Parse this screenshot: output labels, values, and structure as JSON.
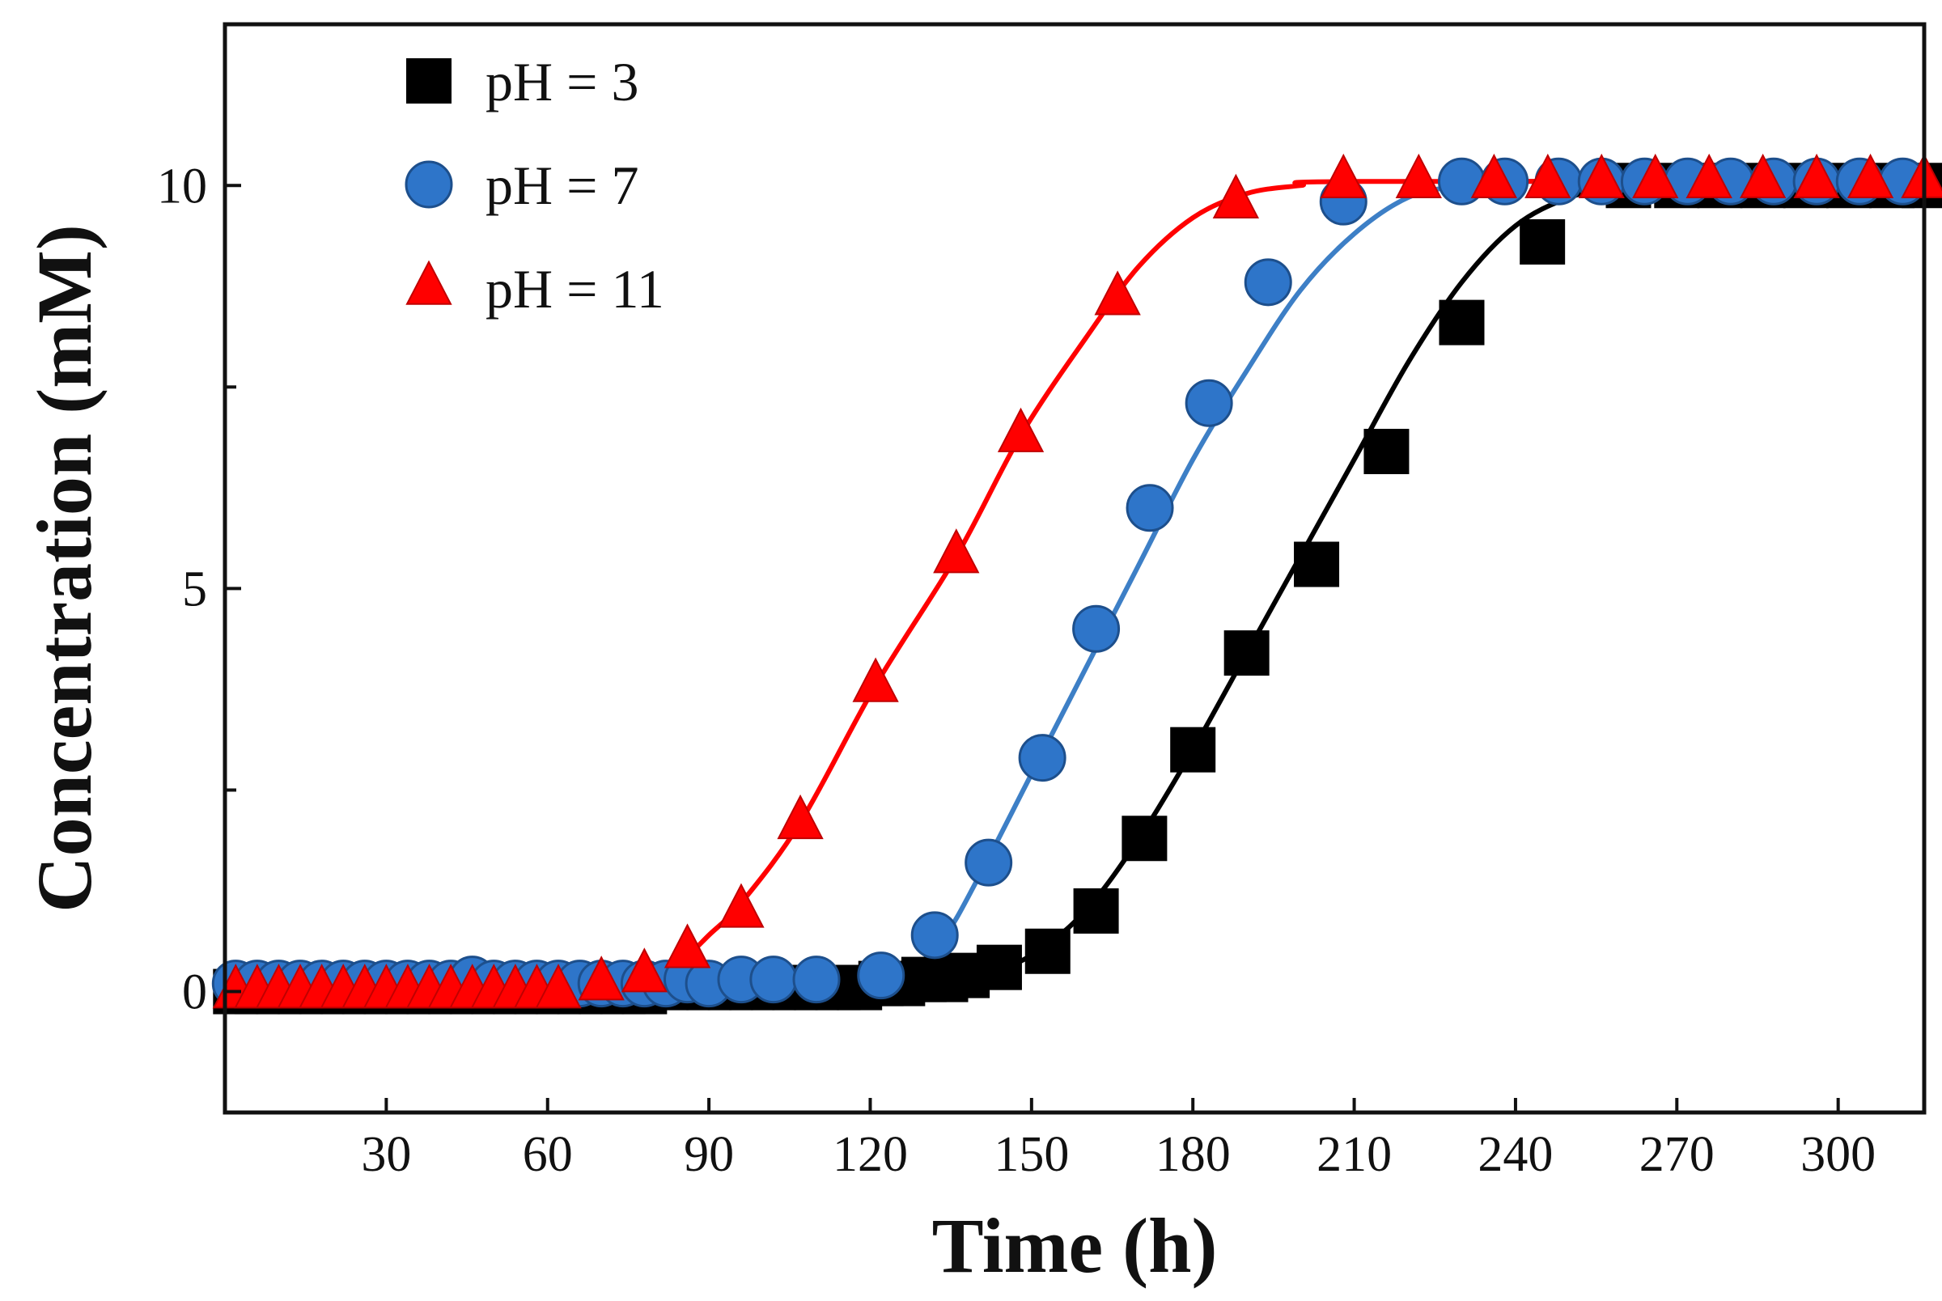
{
  "chart_data": {
    "type": "scatter",
    "title": "",
    "xlabel": "Time (h)",
    "ylabel": "Concentration (mM)",
    "xlim": [
      0,
      316
    ],
    "ylim": [
      -1.5,
      12
    ],
    "xticks": [
      30,
      60,
      90,
      120,
      150,
      180,
      210,
      240,
      270,
      300
    ],
    "yticks_labeled": [
      0,
      5,
      10
    ],
    "yticks_minor": [
      2.5,
      7.5
    ],
    "legend_position": "top-left",
    "grid": false,
    "series": [
      {
        "name": "pH = 3",
        "marker": "square",
        "color": "#000000",
        "x": [
          2,
          6,
          10,
          14,
          18,
          22,
          26,
          30,
          34,
          38,
          42,
          46,
          50,
          54,
          58,
          62,
          66,
          70,
          74,
          78,
          82,
          86,
          90,
          94,
          98,
          102,
          106,
          110,
          114,
          118,
          122,
          126,
          130,
          134,
          138,
          144,
          153,
          162,
          171,
          180,
          190,
          203,
          216,
          230,
          245,
          261,
          270,
          278,
          286,
          294,
          302,
          310,
          316
        ],
        "y": [
          0,
          0,
          0,
          0,
          0,
          0,
          0,
          0,
          0,
          0,
          0,
          0,
          0,
          0,
          0,
          0,
          0,
          0,
          0,
          0,
          0.05,
          0.05,
          0.05,
          0.05,
          0.05,
          0.05,
          0.05,
          0.05,
          0.05,
          0.05,
          0.1,
          0.1,
          0.15,
          0.15,
          0.2,
          0.3,
          0.5,
          1.0,
          1.9,
          3.0,
          4.2,
          5.3,
          6.7,
          8.3,
          9.3,
          10,
          10,
          10,
          10,
          10,
          10,
          10,
          10
        ],
        "fit_x": [
          0,
          120,
          130,
          140,
          150,
          160,
          170,
          180,
          190,
          200,
          210,
          220,
          230,
          240,
          250,
          260,
          270,
          316
        ],
        "fit_y": [
          0,
          0.05,
          0.1,
          0.2,
          0.45,
          1.0,
          1.9,
          3.0,
          4.2,
          5.4,
          6.6,
          7.8,
          8.8,
          9.5,
          9.85,
          10,
          10,
          10
        ]
      },
      {
        "name": "pH = 7",
        "marker": "circle",
        "color": "#2e75c9",
        "x": [
          2,
          6,
          10,
          14,
          18,
          22,
          26,
          30,
          34,
          38,
          42,
          46,
          50,
          54,
          58,
          62,
          66,
          70,
          74,
          78,
          82,
          86,
          90,
          96,
          102,
          110,
          122,
          132,
          142,
          152,
          162,
          172,
          183,
          194,
          208,
          230,
          238,
          248,
          256,
          264,
          272,
          280,
          288,
          296,
          304,
          312
        ],
        "y": [
          0.1,
          0.1,
          0.1,
          0.1,
          0.1,
          0.1,
          0.1,
          0.1,
          0.1,
          0.1,
          0.1,
          0.15,
          0.1,
          0.1,
          0.1,
          0.1,
          0.1,
          0.1,
          0.1,
          0.1,
          0.1,
          0.15,
          0.1,
          0.15,
          0.15,
          0.15,
          0.2,
          0.7,
          1.6,
          2.9,
          4.5,
          6.0,
          7.3,
          8.8,
          9.8,
          10.05,
          10.05,
          10.05,
          10.05,
          10.05,
          10.05,
          10.05,
          10.05,
          10.05,
          10.05,
          10.05
        ],
        "fit_x": [
          0,
          110,
          120,
          128,
          134,
          140,
          150,
          160,
          170,
          180,
          190,
          200,
          210,
          220,
          230,
          240,
          316
        ],
        "fit_y": [
          0.1,
          0.15,
          0.2,
          0.3,
          0.7,
          1.4,
          2.7,
          4.0,
          5.3,
          6.6,
          7.7,
          8.7,
          9.4,
          9.85,
          10.0,
          10.05,
          10.05
        ],
        "fit_color": "#3d7fc6"
      },
      {
        "name": "pH = 11",
        "marker": "triangle",
        "color": "#ff0000",
        "x": [
          2,
          6,
          10,
          14,
          18,
          22,
          26,
          30,
          34,
          38,
          42,
          46,
          50,
          54,
          58,
          62,
          70,
          78,
          86,
          96,
          107,
          121,
          136,
          148,
          166,
          188,
          208,
          222,
          236,
          246,
          256,
          266,
          276,
          286,
          296,
          306,
          316
        ],
        "y": [
          0,
          0,
          0,
          0,
          0,
          0,
          0,
          0,
          0,
          0,
          0,
          0,
          0,
          0,
          0,
          0,
          0.1,
          0.2,
          0.5,
          1.0,
          2.1,
          3.8,
          5.4,
          6.9,
          8.6,
          9.8,
          10.05,
          10.05,
          10.05,
          10.05,
          10.05,
          10.05,
          10.05,
          10.05,
          10.05,
          10.05,
          10.05
        ],
        "fit_x": [
          0,
          80,
          86,
          90,
          96,
          107,
          121,
          136,
          148,
          160,
          170,
          180,
          190,
          200,
          210,
          316
        ],
        "fit_y": [
          0,
          0.2,
          0.45,
          0.7,
          1.1,
          2.1,
          3.8,
          5.4,
          6.9,
          8.1,
          9.0,
          9.6,
          9.9,
          10.0,
          10.05,
          10.05
        ]
      }
    ]
  }
}
